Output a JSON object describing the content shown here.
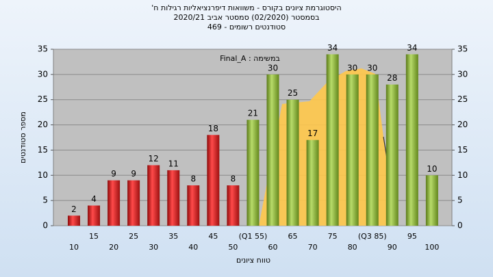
{
  "chart_data": {
    "type": "bar",
    "title": "היסטוגרמת ציונים בקורס - משוואות דיפרנציאליות רגילות ח'",
    "subtitle": "בסמסטר  (02/2020)  סמסטר אביב 2020/21",
    "subtitle2": "סטודנטים רשומים - 469",
    "annotation": "במשימה : Final_A",
    "x_label": "טווח ציונים",
    "y_label": "מספר סטודנטים",
    "categories": [
      "10",
      "15",
      "20",
      "25",
      "30",
      "35",
      "40",
      "45",
      "50",
      "(Q1 55)",
      "60",
      "65",
      "70",
      "75",
      "80",
      "(Q3 85)",
      "90",
      "95",
      "100"
    ],
    "values": [
      2,
      4,
      9,
      9,
      12,
      11,
      8,
      18,
      8,
      21,
      30,
      25,
      17,
      34,
      30,
      30,
      28,
      34,
      10
    ],
    "bar_colors": [
      "red",
      "red",
      "red",
      "red",
      "red",
      "red",
      "red",
      "red",
      "red",
      "green",
      "green",
      "green",
      "green",
      "green",
      "green",
      "green",
      "green",
      "green",
      "green"
    ],
    "ylim": [
      0,
      35
    ],
    "yticks": [
      0,
      5,
      10,
      15,
      20,
      25,
      30,
      35
    ],
    "y2lim": [
      0,
      35
    ],
    "y2ticks": [
      0,
      5,
      10,
      15,
      20,
      25,
      30,
      35
    ],
    "grid": true
  }
}
